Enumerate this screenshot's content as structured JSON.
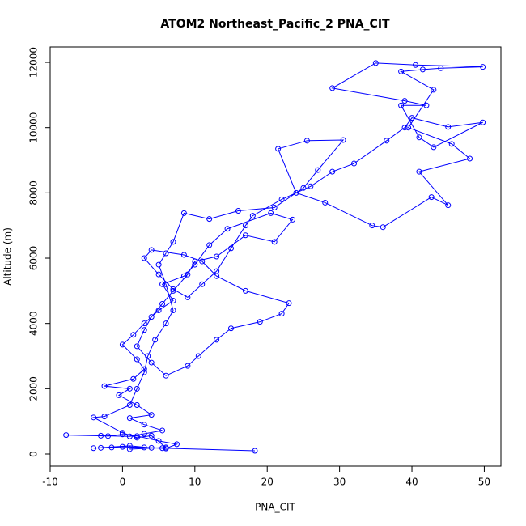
{
  "chart_data": {
    "type": "line",
    "title": "ATOM2 Northeast_Pacific_2 PNA_CIT",
    "x_label": "PNA_CIT",
    "y_label": "Altitude (m)",
    "x": [
      18.3,
      5.5,
      3,
      0,
      -1.5,
      -3,
      -4,
      1,
      4,
      6,
      7.5,
      5,
      2,
      0,
      -2,
      -7.8,
      -3,
      1,
      3,
      5.5,
      3,
      1,
      4,
      2,
      -0.5,
      1,
      -2.5,
      1.5,
      3,
      2,
      0,
      1.5,
      3,
      5,
      7,
      5.5,
      8.5,
      10,
      12,
      14.5,
      20.5,
      23.5,
      21,
      17,
      13,
      10,
      9,
      7,
      5.5,
      4,
      3,
      2,
      4,
      6,
      9,
      10.5,
      13,
      15,
      19,
      22,
      23,
      17,
      13,
      11,
      8.5,
      4,
      3,
      5,
      7,
      9,
      11,
      13,
      15,
      17,
      18,
      22,
      26,
      29,
      32,
      36.5,
      39,
      40,
      45,
      49.8,
      43,
      41,
      38.5,
      42,
      39,
      29,
      35,
      40.5,
      49.8,
      44,
      41.5,
      38.5,
      43,
      39.5,
      45.5,
      48,
      41,
      45,
      42.7,
      36,
      34.5,
      28,
      24,
      21.5,
      25.5,
      30.5,
      27,
      25,
      21,
      16,
      12,
      8.5,
      7,
      6,
      5,
      6,
      7,
      6,
      4.5,
      3.5,
      3,
      2,
      1,
      -2.5,
      -4,
      0,
      2,
      4,
      6,
      1
    ],
    "values": [
      100,
      180,
      200,
      220,
      200,
      190,
      180,
      250,
      190,
      170,
      300,
      400,
      550,
      600,
      550,
      580,
      560,
      540,
      620,
      720,
      900,
      1100,
      1200,
      1500,
      1800,
      2000,
      2080,
      2300,
      2600,
      2900,
      3350,
      3650,
      4000,
      4400,
      4700,
      5200,
      5450,
      5800,
      6400,
      6900,
      7380,
      7180,
      6500,
      6700,
      6050,
      5900,
      5500,
      5000,
      4600,
      4200,
      3800,
      3300,
      2800,
      2400,
      2700,
      3000,
      3500,
      3850,
      4050,
      4300,
      4620,
      5000,
      5450,
      5900,
      6100,
      6250,
      6000,
      5500,
      5050,
      4800,
      5200,
      5600,
      6300,
      7000,
      7300,
      7800,
      8200,
      8650,
      8900,
      9600,
      10000,
      10300,
      10020,
      10160,
      9400,
      9700,
      10680,
      10680,
      10820,
      11210,
      11980,
      11920,
      11860,
      11820,
      11780,
      11720,
      11160,
      10000,
      9500,
      9050,
      8650,
      7620,
      7870,
      6950,
      7000,
      7700,
      8000,
      9350,
      9600,
      9620,
      8700,
      8150,
      7550,
      7450,
      7200,
      7380,
      6500,
      6150,
      5800,
      5200,
      4400,
      4000,
      3500,
      3000,
      2500,
      2000,
      1500,
      1150,
      1120,
      650,
      500,
      560,
      200,
      150
    ],
    "color": "#0000ff",
    "markers": true,
    "xlim": [
      -10,
      52.3
    ],
    "ylim": [
      -372,
      12472
    ],
    "xticks": [
      -10,
      0,
      10,
      20,
      30,
      40,
      50
    ],
    "yticks": [
      0,
      2000,
      4000,
      6000,
      8000,
      10000,
      12000
    ]
  }
}
